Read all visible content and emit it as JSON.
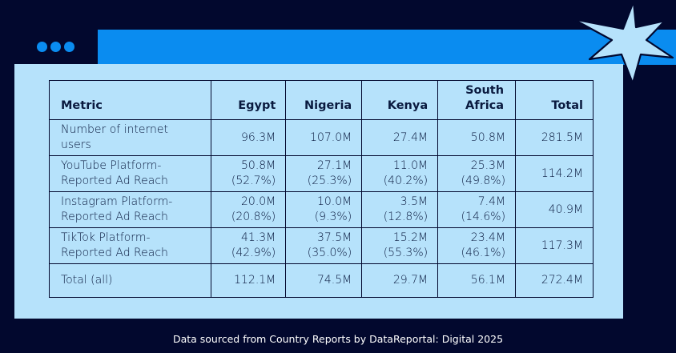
{
  "footer": "Data sourced from Country Reports by DataReportal: Digital 2025",
  "colors": {
    "background": "#02082e",
    "card": "#b6e2fb",
    "accent": "#0a8cf0",
    "text": "#0a1a3f"
  },
  "chart_data": {
    "type": "table",
    "columns": [
      "Metric",
      "Egypt",
      "Nigeria",
      "Kenya",
      "South Africa",
      "Total"
    ],
    "rows": [
      {
        "metric": "Number of internet users",
        "egypt": "96.3M",
        "nigeria": "107.0M",
        "kenya": "27.4M",
        "south_africa": "50.8M",
        "total": "281.5M"
      },
      {
        "metric": "YouTube Platform-Reported Ad Reach",
        "egypt": "50.8M (52.7%)",
        "nigeria": "27.1M (25.3%)",
        "kenya": "11.0M (40.2%)",
        "south_africa": "25.3M (49.8%)",
        "total": "114.2M"
      },
      {
        "metric": "Instagram Platform-Reported Ad Reach",
        "egypt": "20.0M (20.8%)",
        "nigeria": "10.0M (9.3%)",
        "kenya": "3.5M (12.8%)",
        "south_africa": "7.4M (14.6%)",
        "total": "40.9M"
      },
      {
        "metric": "TikTok Platform-Reported Ad Reach",
        "egypt": "41.3M (42.9%)",
        "nigeria": "37.5M (35.0%)",
        "kenya": "15.2M (55.3%)",
        "south_africa": "23.4M (46.1%)",
        "total": "117.3M"
      },
      {
        "metric": "Total (all)",
        "egypt": "112.1M",
        "nigeria": "74.5M",
        "kenya": "29.7M",
        "south_africa": "56.1M",
        "total": "272.4M"
      }
    ]
  }
}
